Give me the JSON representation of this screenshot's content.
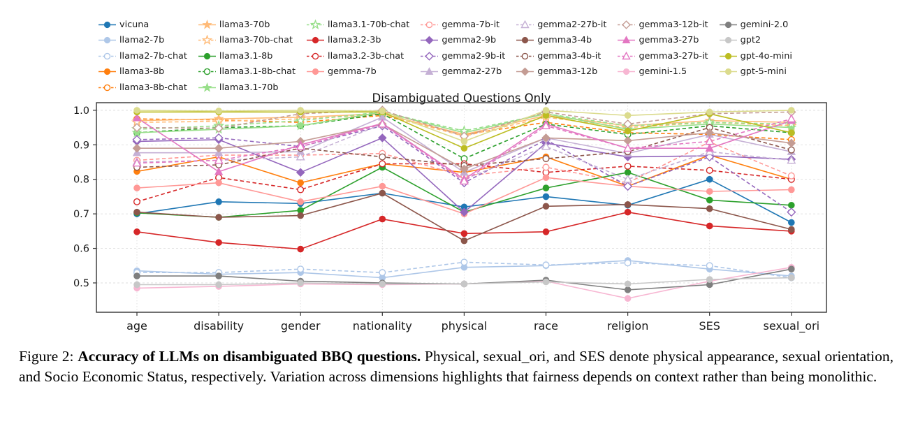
{
  "figure": {
    "caption": {
      "prefix": "Figure 2: ",
      "bold": "Accuracy of LLMs on disambiguated BBQ questions.",
      "text": " Physical, sexual_ori, and SES denote physical appearance, sexual orientation, and Socio Economic Status, respectively. Variation across dimensions highlights that fairness depends on context rather than being monolithic."
    }
  },
  "chart_data": {
    "type": "line",
    "title": "Disambiguated Questions Only",
    "categories": [
      "age",
      "disability",
      "gender",
      "nationality",
      "physical",
      "race",
      "religion",
      "SES",
      "sexual_ori"
    ],
    "ylabel": "",
    "xlabel": "",
    "yticks": [
      0.5,
      0.6,
      0.7,
      0.8,
      0.9,
      1.0
    ],
    "ylim": [
      0.415,
      1.022
    ],
    "grid": true,
    "legend_position": "top",
    "legend_columns": [
      5,
      5,
      4,
      4,
      4,
      4,
      4
    ],
    "series": [
      {
        "name": "vicuna",
        "color": "#1f77b4",
        "marker": "circle",
        "fill": "solid",
        "line": "solid",
        "values": [
          0.7,
          0.735,
          0.73,
          0.76,
          0.72,
          0.75,
          0.725,
          0.8,
          0.675
        ]
      },
      {
        "name": "llama2-7b",
        "color": "#aec7e8",
        "marker": "circle",
        "fill": "solid",
        "line": "solid",
        "values": [
          0.535,
          0.525,
          0.53,
          0.515,
          0.545,
          0.55,
          0.565,
          0.54,
          0.52
        ]
      },
      {
        "name": "llama2-7b-chat",
        "color": "#aec7e8",
        "marker": "circle",
        "fill": "open",
        "line": "dashed",
        "values": [
          0.53,
          0.53,
          0.54,
          0.53,
          0.56,
          0.552,
          0.558,
          0.55,
          0.515
        ]
      },
      {
        "name": "llama3-8b",
        "color": "#ff7f0e",
        "marker": "circle",
        "fill": "solid",
        "line": "solid",
        "values": [
          0.823,
          0.865,
          0.79,
          0.845,
          0.82,
          0.865,
          0.78,
          0.87,
          0.8
        ]
      },
      {
        "name": "llama3-8b-chat",
        "color": "#ff7f0e",
        "marker": "circle",
        "fill": "open",
        "line": "dashed",
        "values": [
          0.975,
          0.972,
          0.965,
          0.985,
          0.93,
          0.965,
          0.935,
          0.93,
          0.915
        ]
      },
      {
        "name": "llama3-70b",
        "color": "#ffbb78",
        "marker": "star",
        "fill": "solid",
        "line": "solid",
        "values": [
          0.97,
          0.975,
          0.98,
          0.99,
          0.93,
          0.985,
          0.955,
          0.97,
          0.965
        ]
      },
      {
        "name": "llama3-70b-chat",
        "color": "#ffbb78",
        "marker": "star",
        "fill": "open",
        "line": "dashed",
        "values": [
          0.965,
          0.968,
          0.975,
          0.988,
          0.925,
          0.98,
          0.95,
          0.965,
          0.955
        ]
      },
      {
        "name": "llama3.1-8b",
        "color": "#2ca02c",
        "marker": "circle",
        "fill": "solid",
        "line": "solid",
        "values": [
          0.703,
          0.69,
          0.71,
          0.835,
          0.705,
          0.775,
          0.82,
          0.74,
          0.725
        ]
      },
      {
        "name": "llama3.1-8b-chat",
        "color": "#2ca02c",
        "marker": "circle",
        "fill": "open",
        "line": "dashed",
        "values": [
          0.935,
          0.95,
          0.955,
          0.99,
          0.86,
          0.96,
          0.93,
          0.955,
          0.935
        ]
      },
      {
        "name": "llama3.1-70b",
        "color": "#98df8a",
        "marker": "star",
        "fill": "solid",
        "line": "solid",
        "values": [
          0.935,
          0.945,
          0.955,
          0.995,
          0.935,
          0.99,
          0.945,
          0.96,
          0.95
        ]
      },
      {
        "name": "llama3.1-70b-chat",
        "color": "#98df8a",
        "marker": "star",
        "fill": "open",
        "line": "dashed",
        "values": [
          0.945,
          0.955,
          0.97,
          0.995,
          0.94,
          0.99,
          0.955,
          0.965,
          0.96
        ]
      },
      {
        "name": "llama3.2-3b",
        "color": "#d62728",
        "marker": "circle",
        "fill": "solid",
        "line": "solid",
        "values": [
          0.648,
          0.617,
          0.598,
          0.685,
          0.643,
          0.648,
          0.705,
          0.665,
          0.65
        ]
      },
      {
        "name": "llama3.2-3b-chat",
        "color": "#d62728",
        "marker": "circle",
        "fill": "open",
        "line": "dashed",
        "values": [
          0.735,
          0.805,
          0.77,
          0.845,
          0.845,
          0.82,
          0.838,
          0.826,
          0.8
        ]
      },
      {
        "name": "gemma-7b",
        "color": "#ff9896",
        "marker": "circle",
        "fill": "solid",
        "line": "solid",
        "values": [
          0.775,
          0.79,
          0.735,
          0.78,
          0.7,
          0.805,
          0.78,
          0.765,
          0.77
        ]
      },
      {
        "name": "gemma-7b-it",
        "color": "#ff9896",
        "marker": "circle",
        "fill": "open",
        "line": "dashed",
        "values": [
          0.855,
          0.87,
          0.87,
          0.875,
          0.81,
          0.835,
          0.79,
          0.908,
          0.81
        ]
      },
      {
        "name": "gemma2-9b",
        "color": "#9467bd",
        "marker": "diamond",
        "fill": "solid",
        "line": "solid",
        "values": [
          0.91,
          0.915,
          0.82,
          0.92,
          0.705,
          0.905,
          0.865,
          0.868,
          0.858
        ]
      },
      {
        "name": "gemma2-9b-it",
        "color": "#9467bd",
        "marker": "diamond",
        "fill": "open",
        "line": "dashed",
        "values": [
          0.915,
          0.92,
          0.895,
          0.955,
          0.79,
          0.915,
          0.78,
          0.865,
          0.705
        ]
      },
      {
        "name": "gemma2-27b",
        "color": "#c5b0d5",
        "marker": "triangle",
        "fill": "solid",
        "line": "solid",
        "values": [
          0.877,
          0.877,
          0.88,
          0.98,
          0.82,
          0.92,
          0.875,
          0.93,
          0.88
        ]
      },
      {
        "name": "gemma2-27b-it",
        "color": "#c5b0d5",
        "marker": "triangle",
        "fill": "open",
        "line": "dashed",
        "values": [
          0.85,
          0.855,
          0.865,
          0.96,
          0.8,
          0.895,
          0.8,
          0.88,
          0.855
        ]
      },
      {
        "name": "gemma3-4b",
        "color": "#8c564b",
        "marker": "circle",
        "fill": "solid",
        "line": "solid",
        "values": [
          0.705,
          0.69,
          0.695,
          0.76,
          0.622,
          0.722,
          0.727,
          0.715,
          0.655
        ]
      },
      {
        "name": "gemma3-4b-it",
        "color": "#8c564b",
        "marker": "circle",
        "fill": "open",
        "line": "dashed",
        "values": [
          0.835,
          0.842,
          0.89,
          0.865,
          0.84,
          0.86,
          0.88,
          0.95,
          0.885
        ]
      },
      {
        "name": "gemma3-12b",
        "color": "#c49c94",
        "marker": "diamond",
        "fill": "solid",
        "line": "solid",
        "values": [
          0.89,
          0.89,
          0.91,
          0.96,
          0.83,
          0.92,
          0.912,
          0.935,
          0.905
        ]
      },
      {
        "name": "gemma3-12b-it",
        "color": "#c49c94",
        "marker": "diamond",
        "fill": "open",
        "line": "dashed",
        "values": [
          0.95,
          0.948,
          0.99,
          1.0,
          0.925,
          0.995,
          0.96,
          0.99,
          0.995
        ]
      },
      {
        "name": "gemma3-27b",
        "color": "#e377c2",
        "marker": "triangle",
        "fill": "solid",
        "line": "solid",
        "values": [
          0.978,
          0.822,
          0.9,
          0.962,
          0.8,
          0.96,
          0.89,
          0.89,
          0.97
        ]
      },
      {
        "name": "gemma3-27b-it",
        "color": "#e377c2",
        "marker": "triangle",
        "fill": "open",
        "line": "dashed",
        "values": [
          0.847,
          0.855,
          0.895,
          0.96,
          0.795,
          0.955,
          0.89,
          0.91,
          0.975
        ]
      },
      {
        "name": "gemini-1.5",
        "color": "#f7b6d2",
        "marker": "circle",
        "fill": "solid",
        "line": "solid",
        "values": [
          0.485,
          0.49,
          0.497,
          0.495,
          0.497,
          0.505,
          0.455,
          0.505,
          0.545
        ]
      },
      {
        "name": "gemini-2.0",
        "color": "#7f7f7f",
        "marker": "circle",
        "fill": "solid",
        "line": "solid",
        "values": [
          0.52,
          0.52,
          0.505,
          0.5,
          0.497,
          0.508,
          0.48,
          0.495,
          0.54
        ]
      },
      {
        "name": "gpt2",
        "color": "#c7c7c7",
        "marker": "circle",
        "fill": "solid",
        "line": "solid",
        "values": [
          0.495,
          0.495,
          0.5,
          0.497,
          0.497,
          0.503,
          0.497,
          0.51,
          0.515
        ]
      },
      {
        "name": "gpt-4o-mini",
        "color": "#bcbd22",
        "marker": "circle",
        "fill": "solid",
        "line": "solid",
        "values": [
          0.995,
          0.995,
          0.995,
          0.995,
          0.89,
          0.985,
          0.94,
          0.99,
          0.935
        ]
      },
      {
        "name": "gpt-5-mini",
        "color": "#dbdb8d",
        "marker": "circle",
        "fill": "solid",
        "line": "solid",
        "values": [
          1.0,
          0.998,
          1.0,
          0.998,
          0.91,
          1.0,
          0.985,
          0.995,
          1.0
        ]
      }
    ]
  }
}
